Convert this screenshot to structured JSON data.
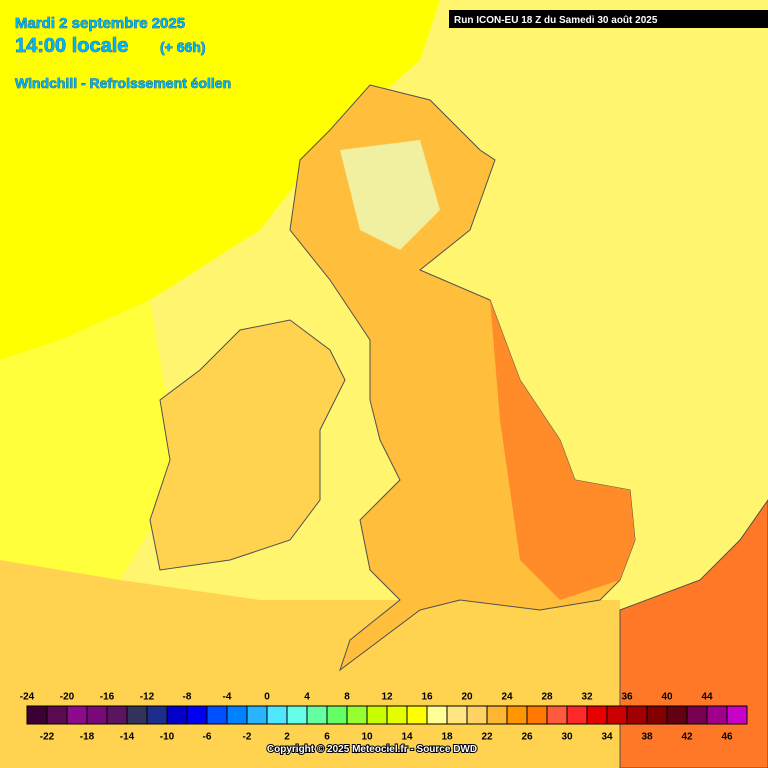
{
  "header": {
    "date": "Mardi 2 septembre 2025",
    "time": "14:00 locale",
    "lead": "(+ 66h)",
    "parameter": "Windchill - Refroissement éolien",
    "run": "Run ICON-EU 18 Z du Samedi 30 août 2025"
  },
  "legend": {
    "values": [
      -24,
      -22,
      -20,
      -18,
      -16,
      -14,
      -12,
      -10,
      -8,
      -6,
      -4,
      -2,
      0,
      2,
      4,
      6,
      8,
      10,
      12,
      14,
      16,
      18,
      20,
      22,
      24,
      26,
      28,
      30,
      32,
      34,
      36,
      38,
      40,
      42,
      44,
      46
    ],
    "colors": [
      "#3c0032",
      "#5a0a50",
      "#8c0a8c",
      "#780a78",
      "#5a1460",
      "#32325a",
      "#1e2d8c",
      "#0000c8",
      "#0000f0",
      "#0050ff",
      "#0082ff",
      "#28b4ff",
      "#50e6ff",
      "#64ffe6",
      "#64ffa0",
      "#64ff64",
      "#96ff32",
      "#c8ff00",
      "#e6ff00",
      "#ffff00",
      "#ffff96",
      "#ffe682",
      "#ffd264",
      "#ffb432",
      "#ff9600",
      "#ff7800",
      "#ff5a3c",
      "#ff2828",
      "#e60000",
      "#c80000",
      "#a00000",
      "#820000",
      "#640014",
      "#780050",
      "#a0008c",
      "#c800c8"
    ]
  },
  "footer": {
    "copyright": "Copyright © 2025 Meteociel.fr - Source DWD"
  }
}
